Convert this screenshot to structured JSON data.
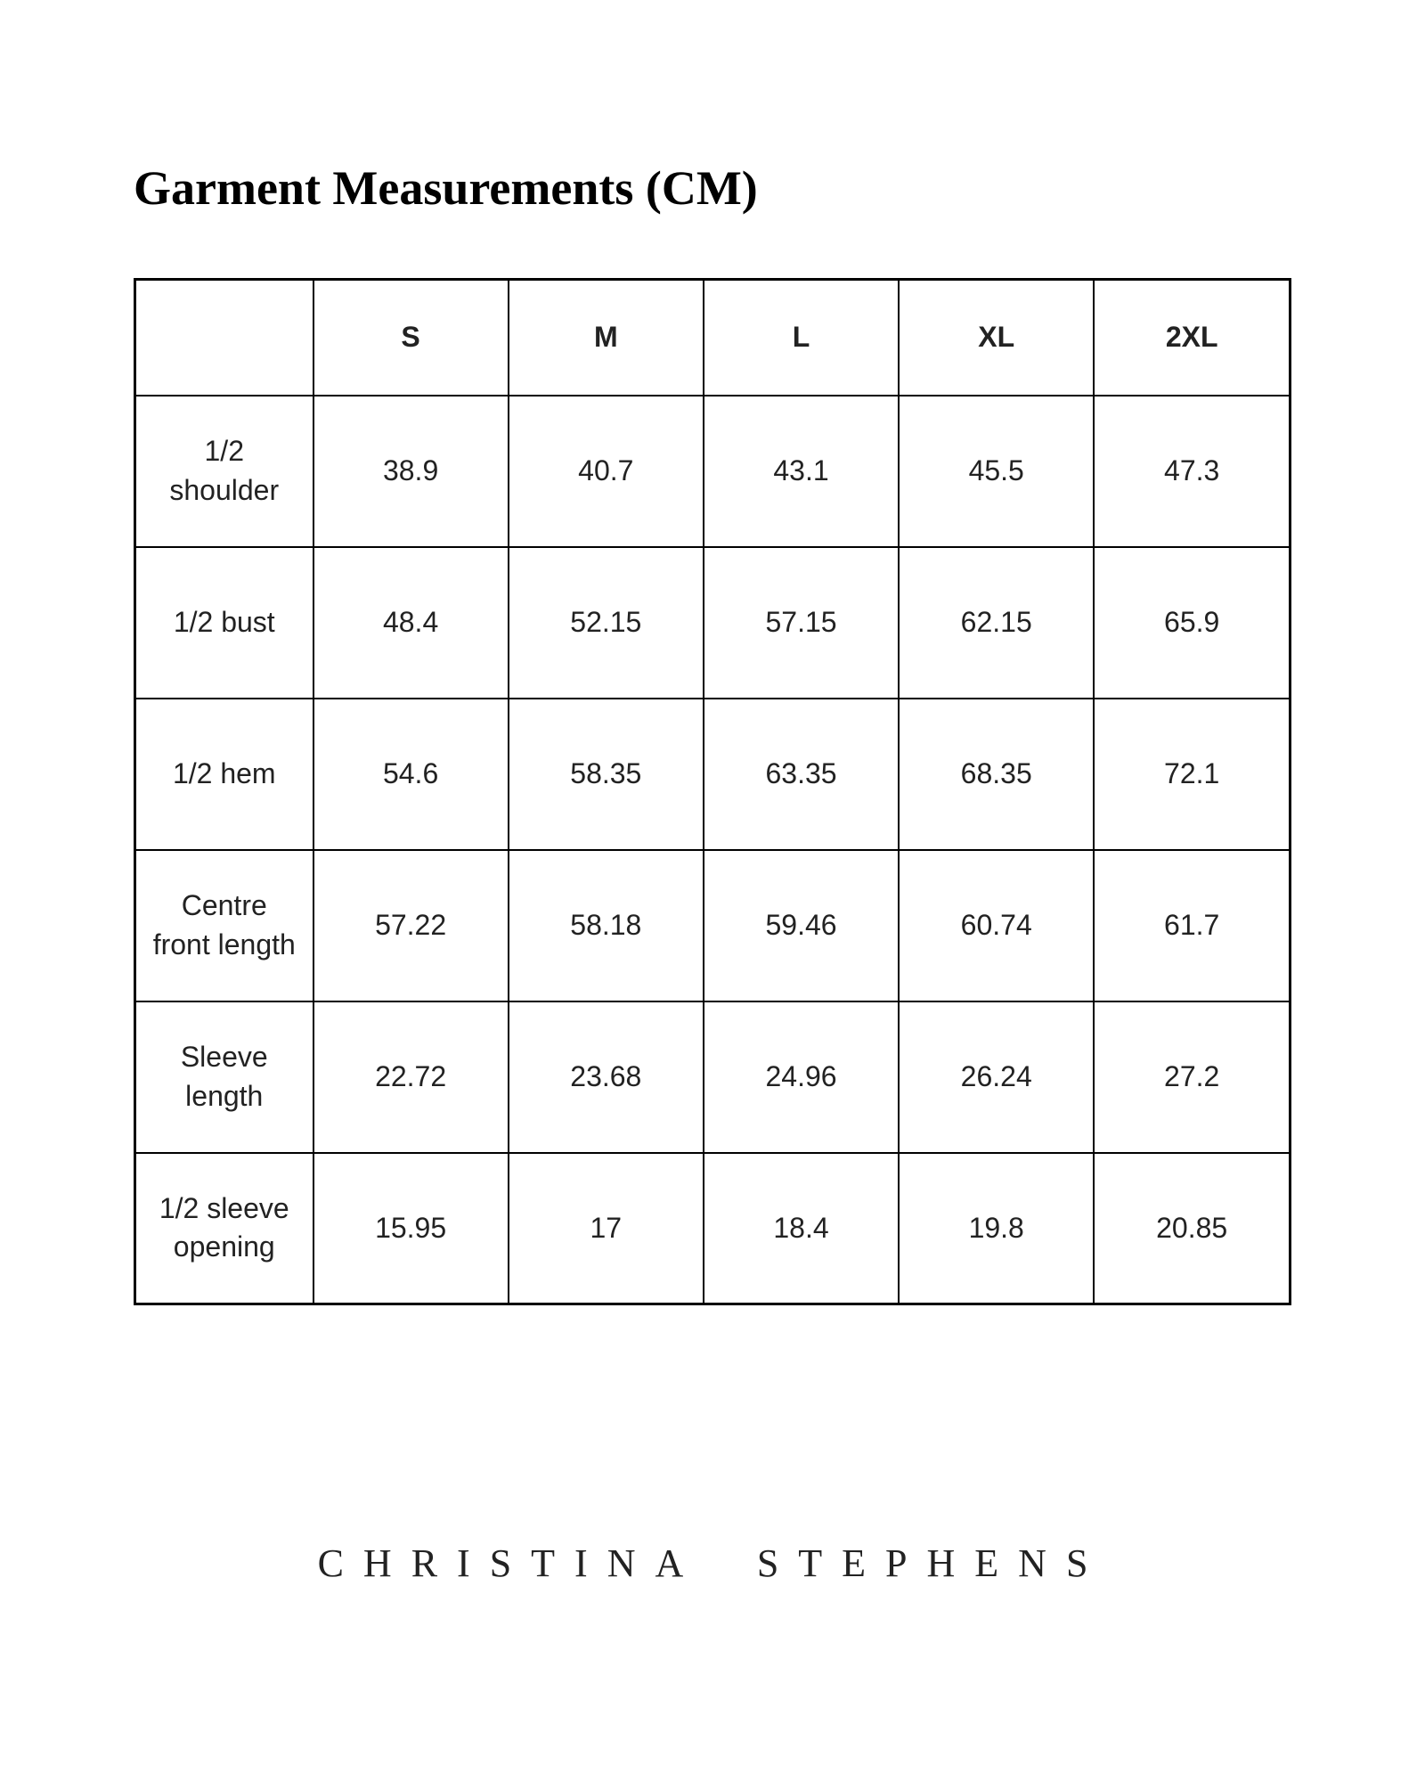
{
  "title": "Garment Measurements (CM)",
  "brand": "CHRISTINA STEPHENS",
  "table": {
    "type": "table",
    "columns": [
      "S",
      "M",
      "L",
      "XL",
      "2XL"
    ],
    "row_labels": [
      "1/2 shoulder",
      "1/2 bust",
      "1/2 hem",
      "Centre front length",
      "Sleeve length",
      "1/2 sleeve opening"
    ],
    "rows": [
      [
        "38.9",
        "40.7",
        "43.1",
        "45.5",
        "47.3"
      ],
      [
        "48.4",
        "52.15",
        "57.15",
        "62.15",
        "65.9"
      ],
      [
        "54.6",
        "58.35",
        "63.35",
        "68.35",
        "72.1"
      ],
      [
        "57.22",
        "58.18",
        "59.46",
        "60.74",
        "61.7"
      ],
      [
        "22.72",
        "23.68",
        "24.96",
        "26.24",
        "27.2"
      ],
      [
        "15.95",
        "17",
        "18.4",
        "19.8",
        "20.85"
      ]
    ],
    "outer_border_width": 3,
    "inner_border_width": 2,
    "border_color": "#000000",
    "background_color": "#ffffff",
    "text_color": "#222222",
    "header_fontsize": 32,
    "header_fontweight": 700,
    "cell_fontsize": 32,
    "cell_fontweight": 400,
    "row_label_width": 200,
    "header_row_height": 130,
    "data_row_height": 170
  },
  "title_style": {
    "font_family": "serif",
    "fontsize": 54,
    "fontweight": 700,
    "color": "#000000"
  },
  "brand_style": {
    "font_family": "serif",
    "fontsize": 44,
    "fontweight": 400,
    "letter_spacing": 22,
    "color": "#222222"
  }
}
